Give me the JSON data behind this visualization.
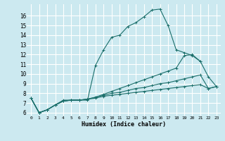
{
  "xlabel": "Humidex (Indice chaleur)",
  "bg_color": "#cce9f0",
  "grid_color": "#ffffff",
  "line_color": "#1a6e6a",
  "xlim": [
    -0.5,
    23.5
  ],
  "ylim": [
    5.7,
    17.2
  ],
  "yticks": [
    6,
    7,
    8,
    9,
    10,
    11,
    12,
    13,
    14,
    15,
    16
  ],
  "xticks": [
    0,
    1,
    2,
    3,
    4,
    5,
    6,
    7,
    8,
    9,
    10,
    11,
    12,
    13,
    14,
    15,
    16,
    17,
    18,
    19,
    20,
    21,
    22,
    23
  ],
  "series": [
    {
      "x": [
        0,
        1,
        2,
        3,
        4,
        5,
        6,
        7,
        8,
        9,
        10,
        11,
        12,
        13,
        14,
        15,
        16,
        17,
        18,
        19,
        20,
        21
      ],
      "y": [
        7.5,
        6.0,
        6.3,
        6.8,
        7.3,
        7.3,
        7.3,
        7.3,
        10.9,
        12.5,
        13.8,
        14.0,
        14.9,
        15.3,
        15.9,
        16.6,
        16.7,
        15.0,
        12.5,
        12.2,
        11.9,
        11.3
      ]
    },
    {
      "x": [
        0,
        1,
        2,
        3,
        4,
        5,
        6,
        7,
        8,
        9,
        10,
        11,
        12,
        13,
        14,
        15,
        16,
        17,
        18,
        19,
        20,
        21,
        22,
        23
      ],
      "y": [
        7.5,
        6.0,
        6.3,
        6.8,
        7.2,
        7.3,
        7.3,
        7.4,
        7.6,
        7.9,
        8.2,
        8.5,
        8.8,
        9.1,
        9.4,
        9.7,
        10.0,
        10.3,
        10.6,
        11.9,
        12.0,
        11.3,
        9.7,
        8.7
      ]
    },
    {
      "x": [
        0,
        1,
        2,
        3,
        4,
        5,
        6,
        7,
        8,
        9,
        10,
        11,
        12,
        13,
        14,
        15,
        16,
        17,
        18,
        19,
        20,
        21,
        22,
        23
      ],
      "y": [
        7.5,
        6.0,
        6.3,
        6.8,
        7.2,
        7.3,
        7.3,
        7.4,
        7.6,
        7.8,
        8.0,
        8.1,
        8.3,
        8.5,
        8.6,
        8.8,
        9.0,
        9.1,
        9.3,
        9.5,
        9.7,
        9.9,
        8.5,
        8.7
      ]
    },
    {
      "x": [
        0,
        1,
        2,
        3,
        4,
        5,
        6,
        7,
        8,
        9,
        10,
        11,
        12,
        13,
        14,
        15,
        16,
        17,
        18,
        19,
        20,
        21,
        22,
        23
      ],
      "y": [
        7.5,
        6.0,
        6.3,
        6.8,
        7.2,
        7.3,
        7.3,
        7.4,
        7.5,
        7.7,
        7.8,
        7.9,
        8.0,
        8.1,
        8.2,
        8.3,
        8.4,
        8.5,
        8.6,
        8.7,
        8.8,
        8.9,
        8.5,
        8.7
      ]
    }
  ]
}
